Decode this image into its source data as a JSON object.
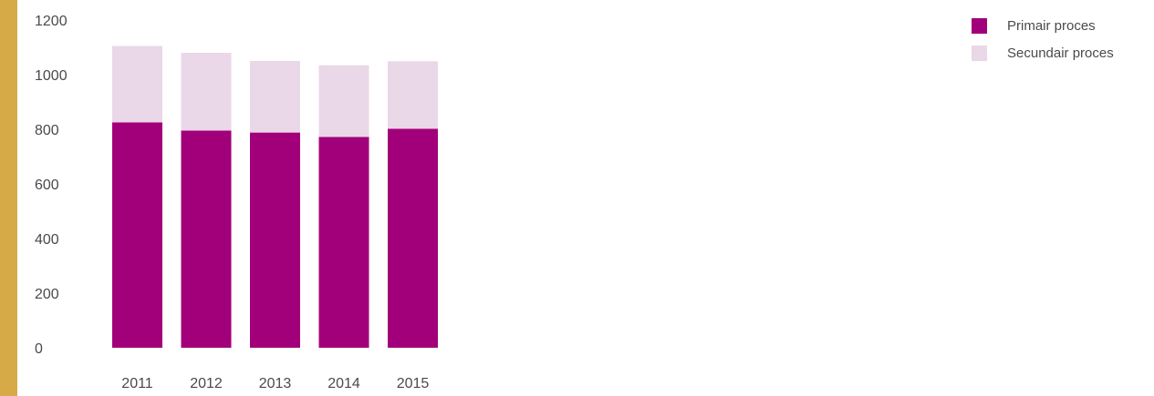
{
  "chart_data": {
    "type": "bar",
    "stacked": true,
    "categories": [
      "2011",
      "2012",
      "2013",
      "2014",
      "2015"
    ],
    "series": [
      {
        "name": "Primair proces",
        "color": "#a2007a",
        "values": [
          825,
          795,
          788,
          772,
          802
        ]
      },
      {
        "name": "Secundair proces",
        "color": "#ead7e8",
        "values": [
          280,
          285,
          262,
          262,
          247
        ]
      }
    ],
    "ylim": [
      0,
      1200
    ],
    "yticks": [
      0,
      200,
      400,
      600,
      800,
      1000,
      1200
    ],
    "grid": false,
    "legend": "top-right",
    "title": "",
    "xlabel": "",
    "ylabel": ""
  },
  "accent_color": "#d6aa47"
}
